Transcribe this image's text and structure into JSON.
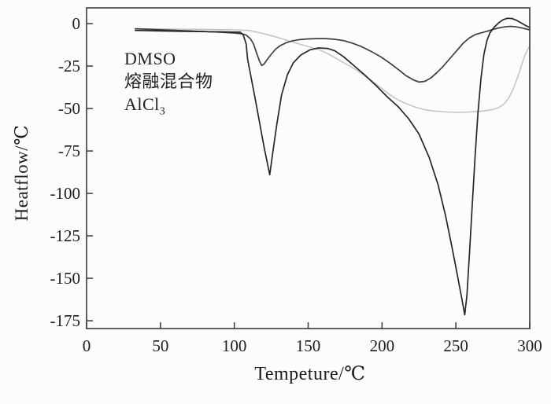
{
  "figure": {
    "background": "#fcfcfb",
    "axis_color": "#3a3a3a",
    "text_color": "#1c1c1c"
  },
  "legend": {
    "line1": "DMSO",
    "line2": "熔融混合物",
    "line3_base": "AlCl",
    "line3_sub": "3"
  },
  "chart_data": {
    "type": "line",
    "title": "",
    "xlabel": "Tempeture/℃",
    "ylabel": "Heatflow/℃",
    "xlim": [
      0,
      300
    ],
    "ylim": [
      -179.6,
      9.3
    ],
    "x_ticks": [
      0,
      50,
      100,
      150,
      200,
      250,
      300
    ],
    "x_tick_labels": [
      "0",
      "50",
      "100",
      "150",
      "200",
      "250",
      "300"
    ],
    "y_ticks": [
      0,
      -25,
      -50,
      -75,
      -100,
      -125,
      -150,
      -175
    ],
    "y_tick_labels": [
      "0",
      "-25",
      "-50",
      "-75",
      "-100",
      "-125",
      "-150",
      "-175"
    ],
    "grid": false,
    "legend_position": "upper-left text block (three lines, no line keys)",
    "annotation_lines": [
      "DMSO",
      "熔融混合物",
      "AlCl3"
    ],
    "series": [
      {
        "name": "light-gray-broad-curve",
        "color": "#c2c2c2",
        "width": 1.5,
        "points": [
          [
            33,
            -3
          ],
          [
            60,
            -3.2
          ],
          [
            80,
            -3.4
          ],
          [
            100,
            -3.6
          ],
          [
            110,
            -4
          ],
          [
            118,
            -5.5
          ],
          [
            126,
            -7.3
          ],
          [
            134,
            -9.3
          ],
          [
            142,
            -11.5
          ],
          [
            150,
            -13.5
          ],
          [
            158,
            -15.5
          ],
          [
            164,
            -18
          ],
          [
            170,
            -21
          ],
          [
            176,
            -24
          ],
          [
            182,
            -27
          ],
          [
            188,
            -30.5
          ],
          [
            196,
            -35.5
          ],
          [
            204,
            -41
          ],
          [
            210,
            -44.5
          ],
          [
            216,
            -47
          ],
          [
            222,
            -49
          ],
          [
            228,
            -50.5
          ],
          [
            235,
            -51.5
          ],
          [
            243,
            -52
          ],
          [
            252,
            -52.3
          ],
          [
            260,
            -52
          ],
          [
            268,
            -51.5
          ],
          [
            274,
            -50.8
          ],
          [
            279,
            -49.5
          ],
          [
            283,
            -47
          ],
          [
            286,
            -43.5
          ],
          [
            289,
            -38
          ],
          [
            292,
            -31
          ],
          [
            295,
            -23
          ],
          [
            297,
            -18
          ],
          [
            299,
            -14.5
          ],
          [
            300,
            -13
          ]
        ]
      },
      {
        "name": "dark-gray-curve-moderate-dips-118C-226C",
        "color": "#3d3d3d",
        "width": 1.7,
        "points": [
          [
            33,
            -3
          ],
          [
            50,
            -3.6
          ],
          [
            70,
            -4.3
          ],
          [
            90,
            -5
          ],
          [
            100,
            -5.5
          ],
          [
            105,
            -6
          ],
          [
            108,
            -6.7
          ],
          [
            111,
            -9
          ],
          [
            113,
            -12
          ],
          [
            115,
            -17
          ],
          [
            117,
            -22
          ],
          [
            118.5,
            -24.6
          ],
          [
            120,
            -24
          ],
          [
            122,
            -21.5
          ],
          [
            125,
            -18
          ],
          [
            128,
            -15
          ],
          [
            131,
            -13
          ],
          [
            135,
            -11.3
          ],
          [
            139,
            -10.2
          ],
          [
            144,
            -9.4
          ],
          [
            150,
            -9
          ],
          [
            156,
            -8.8
          ],
          [
            162,
            -8.8
          ],
          [
            168,
            -9.2
          ],
          [
            174,
            -10
          ],
          [
            180,
            -11.5
          ],
          [
            186,
            -13.5
          ],
          [
            193,
            -16.5
          ],
          [
            199,
            -19.5
          ],
          [
            205,
            -23
          ],
          [
            211,
            -27
          ],
          [
            216,
            -30.5
          ],
          [
            221,
            -33
          ],
          [
            225,
            -34.4
          ],
          [
            229,
            -34
          ],
          [
            233,
            -32
          ],
          [
            237,
            -29
          ],
          [
            241,
            -25.5
          ],
          [
            245,
            -21.5
          ],
          [
            250,
            -16.5
          ],
          [
            255,
            -11.5
          ],
          [
            259,
            -8.5
          ],
          [
            263,
            -6.5
          ],
          [
            267,
            -5.4
          ],
          [
            271,
            -4.5
          ],
          [
            275,
            -3.4
          ],
          [
            279,
            -2.5
          ],
          [
            283,
            -1.9
          ],
          [
            287,
            -1.6
          ],
          [
            291,
            -1.9
          ],
          [
            295,
            -2.6
          ],
          [
            300,
            -3.7
          ]
        ]
      },
      {
        "name": "black-curve-deep-endotherms-124C-256C",
        "color": "#262626",
        "width": 1.7,
        "points": [
          [
            33,
            -4
          ],
          [
            50,
            -4.3
          ],
          [
            70,
            -4.6
          ],
          [
            90,
            -4.8
          ],
          [
            100,
            -5
          ],
          [
            104,
            -5
          ],
          [
            106,
            -6.5
          ],
          [
            108,
            -12
          ],
          [
            109,
            -21
          ],
          [
            111,
            -30
          ],
          [
            114.5,
            -46
          ],
          [
            120,
            -72
          ],
          [
            124,
            -89
          ],
          [
            126,
            -76
          ],
          [
            129,
            -58
          ],
          [
            132,
            -42
          ],
          [
            136,
            -30
          ],
          [
            140,
            -23
          ],
          [
            145,
            -18.5
          ],
          [
            151,
            -15.5
          ],
          [
            157,
            -14.3
          ],
          [
            163,
            -14.6
          ],
          [
            168,
            -16
          ],
          [
            174,
            -19.5
          ],
          [
            180,
            -24
          ],
          [
            188,
            -30
          ],
          [
            196,
            -36.5
          ],
          [
            204,
            -43.5
          ],
          [
            211,
            -49
          ],
          [
            218,
            -56
          ],
          [
            225,
            -65
          ],
          [
            232,
            -79
          ],
          [
            238,
            -95
          ],
          [
            243,
            -113
          ],
          [
            247,
            -130
          ],
          [
            251,
            -148
          ],
          [
            254,
            -162
          ],
          [
            256,
            -171.5
          ],
          [
            257.5,
            -160
          ],
          [
            259,
            -138
          ],
          [
            261,
            -108
          ],
          [
            263,
            -78
          ],
          [
            265,
            -52
          ],
          [
            267,
            -32
          ],
          [
            269,
            -18
          ],
          [
            271,
            -10
          ],
          [
            273,
            -5.5
          ],
          [
            276,
            -2
          ],
          [
            279,
            0.5
          ],
          [
            282,
            2.3
          ],
          [
            285,
            3.2
          ],
          [
            288,
            3
          ],
          [
            291,
            2
          ],
          [
            294,
            0.5
          ],
          [
            297,
            -1
          ],
          [
            300,
            -2.3
          ]
        ]
      }
    ]
  }
}
